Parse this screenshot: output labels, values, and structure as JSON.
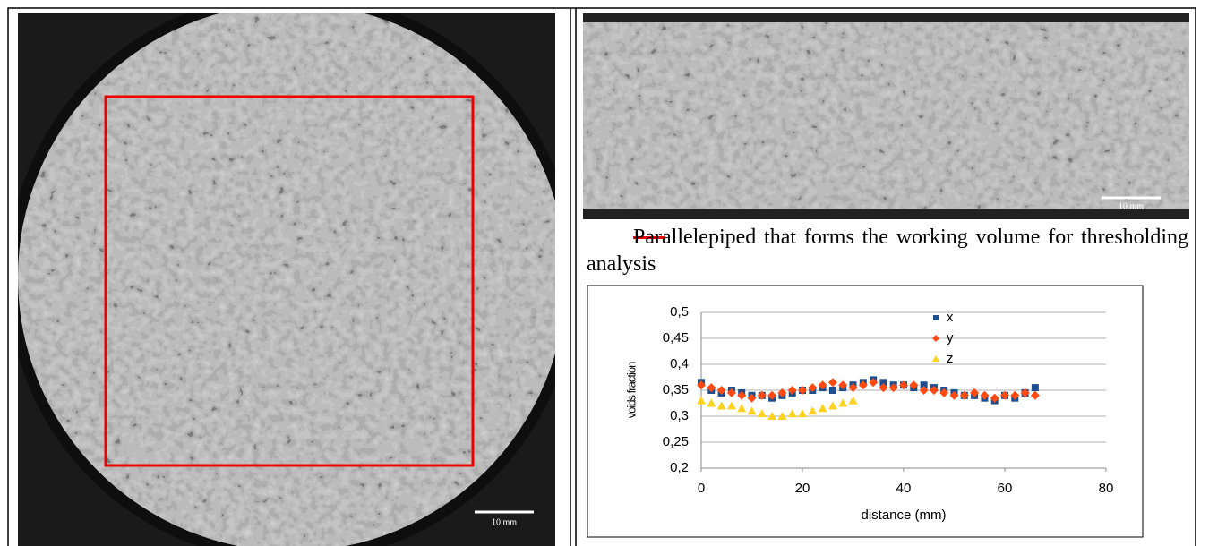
{
  "left_image": {
    "scale_label": "10 mm"
  },
  "right_image": {
    "scale_label": "10 mm"
  },
  "caption": "Parallelepiped that forms the working volume for thresholding analysis",
  "chart_data": {
    "type": "scatter",
    "x_label": "distance (mm)",
    "y_label": "voids fraction",
    "xlim": [
      0,
      80
    ],
    "xticks": [
      0,
      20,
      40,
      60,
      80
    ],
    "ylim": [
      0.2,
      0.5
    ],
    "yticks": [
      {
        "value": 0.2,
        "label": "0,2"
      },
      {
        "value": 0.25,
        "label": "0,25"
      },
      {
        "value": 0.3,
        "label": "0,3"
      },
      {
        "value": 0.35,
        "label": "0,35"
      },
      {
        "value": 0.4,
        "label": "0,4"
      },
      {
        "value": 0.45,
        "label": "0,45"
      },
      {
        "value": 0.5,
        "label": "0,5"
      }
    ],
    "grid": true,
    "series": [
      {
        "name": "x",
        "color": "#1f4e8c",
        "marker": "square",
        "x": [
          0,
          2,
          4,
          6,
          8,
          10,
          12,
          14,
          16,
          18,
          20,
          22,
          24,
          26,
          28,
          30,
          32,
          34,
          36,
          38,
          40,
          42,
          44,
          46,
          48,
          50,
          52,
          54,
          56,
          58,
          60,
          62,
          64,
          66
        ],
        "values": [
          0.365,
          0.35,
          0.345,
          0.35,
          0.345,
          0.34,
          0.34,
          0.335,
          0.34,
          0.345,
          0.35,
          0.35,
          0.355,
          0.35,
          0.355,
          0.36,
          0.365,
          0.37,
          0.365,
          0.36,
          0.36,
          0.355,
          0.36,
          0.355,
          0.35,
          0.345,
          0.34,
          0.34,
          0.335,
          0.33,
          0.34,
          0.335,
          0.345,
          0.355
        ]
      },
      {
        "name": "y",
        "color": "#ff4a12",
        "marker": "diamond",
        "x": [
          0,
          2,
          4,
          6,
          8,
          10,
          12,
          14,
          16,
          18,
          20,
          22,
          24,
          26,
          28,
          30,
          32,
          34,
          36,
          38,
          40,
          42,
          44,
          46,
          48,
          50,
          52,
          54,
          56,
          58,
          60,
          62,
          64,
          66
        ],
        "values": [
          0.36,
          0.355,
          0.35,
          0.345,
          0.34,
          0.335,
          0.34,
          0.34,
          0.345,
          0.35,
          0.35,
          0.355,
          0.36,
          0.365,
          0.36,
          0.355,
          0.36,
          0.365,
          0.355,
          0.355,
          0.36,
          0.36,
          0.35,
          0.35,
          0.345,
          0.34,
          0.34,
          0.345,
          0.34,
          0.335,
          0.34,
          0.34,
          0.345,
          0.34
        ]
      },
      {
        "name": "z",
        "color": "#ffd21f",
        "marker": "triangle",
        "x": [
          0,
          2,
          4,
          6,
          8,
          10,
          12,
          14,
          16,
          18,
          20,
          22,
          24,
          26,
          28,
          30
        ],
        "values": [
          0.33,
          0.325,
          0.32,
          0.32,
          0.315,
          0.31,
          0.305,
          0.3,
          0.3,
          0.305,
          0.305,
          0.31,
          0.315,
          0.32,
          0.325,
          0.33
        ]
      }
    ]
  }
}
